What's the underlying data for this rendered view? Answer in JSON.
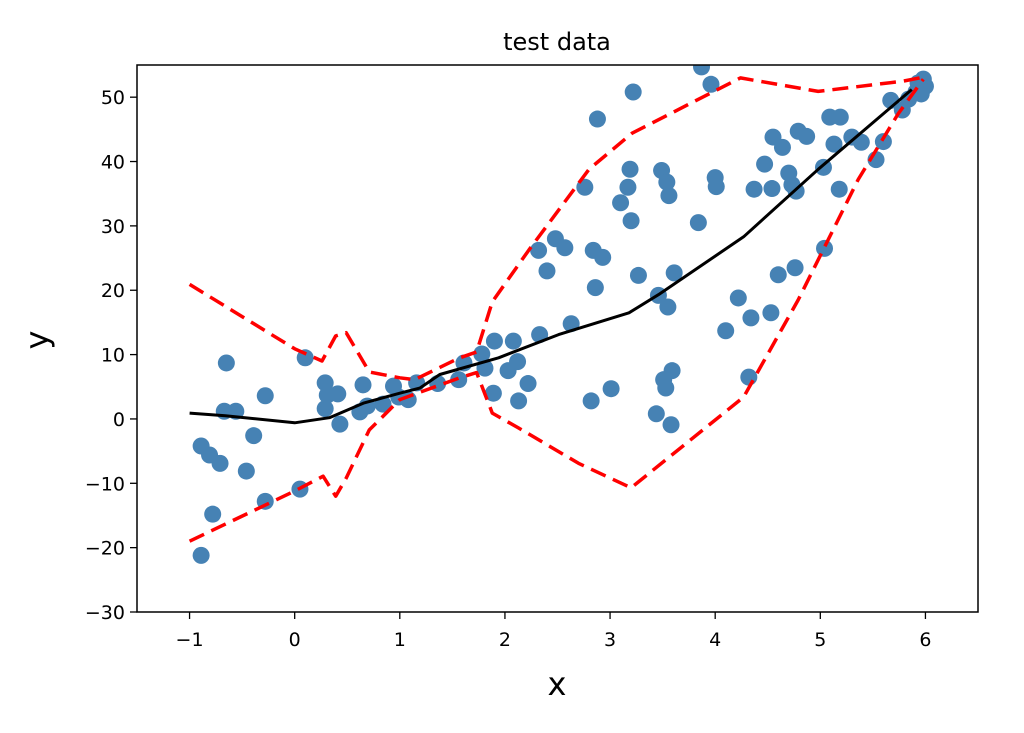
{
  "chart_data": {
    "type": "scatter",
    "title": "test data",
    "xlabel": "x",
    "ylabel": "y",
    "xlim": [
      -1.5,
      6.5
    ],
    "ylim": [
      -30,
      55
    ],
    "xticks": [
      -1,
      0,
      1,
      2,
      3,
      4,
      5,
      6
    ],
    "yticks": [
      -30,
      -20,
      -10,
      0,
      10,
      20,
      30,
      40,
      50
    ],
    "grid": false,
    "colors": {
      "points": "#4682b4",
      "fit": "#000000",
      "band": "#ff0000"
    },
    "series": [
      {
        "kind": "scatter",
        "points": [
          [
            -0.89,
            -21.2
          ],
          [
            -0.78,
            -14.8
          ],
          [
            -0.89,
            -4.2
          ],
          [
            -0.81,
            -5.6
          ],
          [
            -0.71,
            -6.9
          ],
          [
            -0.65,
            8.7
          ],
          [
            -0.67,
            1.2
          ],
          [
            -0.56,
            1.2
          ],
          [
            -0.46,
            -8.1
          ],
          [
            -0.39,
            -2.6
          ],
          [
            -0.28,
            -12.8
          ],
          [
            -0.28,
            3.6
          ],
          [
            0.05,
            -10.9
          ],
          [
            0.1,
            9.5
          ],
          [
            0.29,
            5.6
          ],
          [
            0.29,
            1.6
          ],
          [
            0.31,
            3.7
          ],
          [
            0.41,
            3.9
          ],
          [
            0.43,
            -0.8
          ],
          [
            0.65,
            5.3
          ],
          [
            0.62,
            1.1
          ],
          [
            0.69,
            2.0
          ],
          [
            0.84,
            2.3
          ],
          [
            0.94,
            5.1
          ],
          [
            0.99,
            3.4
          ],
          [
            1.08,
            3.0
          ],
          [
            1.16,
            5.6
          ],
          [
            1.36,
            5.5
          ],
          [
            1.56,
            6.1
          ],
          [
            1.61,
            8.7
          ],
          [
            1.78,
            10.1
          ],
          [
            1.81,
            7.9
          ],
          [
            1.9,
            12.1
          ],
          [
            1.89,
            4.0
          ],
          [
            2.03,
            7.5
          ],
          [
            2.08,
            12.1
          ],
          [
            2.12,
            8.9
          ],
          [
            2.13,
            2.8
          ],
          [
            2.22,
            5.5
          ],
          [
            2.33,
            13.1
          ],
          [
            2.32,
            26.2
          ],
          [
            2.4,
            23.0
          ],
          [
            2.48,
            28.0
          ],
          [
            2.57,
            26.6
          ],
          [
            2.63,
            14.8
          ],
          [
            2.76,
            36.0
          ],
          [
            2.82,
            2.8
          ],
          [
            2.84,
            26.2
          ],
          [
            2.86,
            20.4
          ],
          [
            2.93,
            25.1
          ],
          [
            2.88,
            46.6
          ],
          [
            3.01,
            4.7
          ],
          [
            3.1,
            33.6
          ],
          [
            3.17,
            36.0
          ],
          [
            3.19,
            38.8
          ],
          [
            3.2,
            30.8
          ],
          [
            3.22,
            50.8
          ],
          [
            3.27,
            22.3
          ],
          [
            3.44,
            0.8
          ],
          [
            3.46,
            19.2
          ],
          [
            3.49,
            38.6
          ],
          [
            3.51,
            6.1
          ],
          [
            3.53,
            4.8
          ],
          [
            3.54,
            36.8
          ],
          [
            3.56,
            34.7
          ],
          [
            3.55,
            17.4
          ],
          [
            3.58,
            -0.9
          ],
          [
            3.59,
            7.5
          ],
          [
            3.61,
            22.7
          ],
          [
            3.84,
            30.5
          ],
          [
            3.87,
            54.7
          ],
          [
            3.96,
            52.0
          ],
          [
            4.0,
            37.5
          ],
          [
            4.01,
            36.1
          ],
          [
            4.1,
            13.7
          ],
          [
            4.22,
            18.8
          ],
          [
            4.32,
            6.5
          ],
          [
            4.34,
            15.7
          ],
          [
            4.37,
            35.7
          ],
          [
            4.47,
            39.6
          ],
          [
            4.53,
            16.5
          ],
          [
            4.54,
            35.8
          ],
          [
            4.55,
            43.8
          ],
          [
            4.6,
            22.4
          ],
          [
            4.64,
            42.2
          ],
          [
            4.7,
            38.2
          ],
          [
            4.73,
            36.4
          ],
          [
            4.76,
            23.5
          ],
          [
            4.77,
            35.4
          ],
          [
            4.79,
            44.7
          ],
          [
            4.87,
            43.9
          ],
          [
            5.03,
            39.1
          ],
          [
            5.04,
            26.5
          ],
          [
            5.09,
            46.9
          ],
          [
            5.13,
            42.7
          ],
          [
            5.19,
            46.9
          ],
          [
            5.18,
            35.7
          ],
          [
            5.3,
            43.8
          ],
          [
            5.39,
            43.0
          ],
          [
            5.53,
            40.3
          ],
          [
            5.6,
            43.1
          ],
          [
            5.67,
            49.5
          ],
          [
            5.78,
            48.0
          ],
          [
            5.84,
            49.7
          ],
          [
            5.91,
            50.8
          ],
          [
            5.98,
            52.8
          ],
          [
            5.96,
            50.5
          ],
          [
            6.0,
            51.7
          ],
          [
            5.93,
            52.2
          ]
        ]
      },
      {
        "kind": "line",
        "points": [
          [
            -1,
            0.9
          ],
          [
            -0.66,
            0.5
          ],
          [
            0,
            -0.6
          ],
          [
            0.33,
            0.2
          ],
          [
            0.66,
            2.5
          ],
          [
            1,
            4.0
          ],
          [
            1.19,
            4.8
          ],
          [
            1.38,
            6.9
          ],
          [
            1.94,
            9.5
          ],
          [
            2.51,
            13.1
          ],
          [
            3.18,
            16.5
          ],
          [
            3.46,
            19.3
          ],
          [
            4.27,
            28.3
          ],
          [
            4.98,
            38.8
          ],
          [
            5.87,
            51.2
          ]
        ]
      },
      {
        "kind": "dashed-upper",
        "points": [
          [
            -1,
            20.9
          ],
          [
            0,
            10.9
          ],
          [
            0.26,
            9.0
          ],
          [
            0.39,
            12.9
          ],
          [
            0.49,
            13.4
          ],
          [
            0.71,
            7.3
          ],
          [
            1,
            6.4
          ],
          [
            1.14,
            6.1
          ],
          [
            1.57,
            9.5
          ],
          [
            1.73,
            10.4
          ],
          [
            1.88,
            18.2
          ],
          [
            2.23,
            26.3
          ],
          [
            2.8,
            38.8
          ],
          [
            3.21,
            44.4
          ],
          [
            4.24,
            53.0
          ],
          [
            4.98,
            50.9
          ],
          [
            5.79,
            52.5
          ],
          [
            5.98,
            53.1
          ]
        ]
      },
      {
        "kind": "dashed-lower",
        "points": [
          [
            -1,
            -19.0
          ],
          [
            0,
            -11.2
          ],
          [
            0.27,
            -8.9
          ],
          [
            0.39,
            -12.0
          ],
          [
            0.49,
            -9.2
          ],
          [
            0.71,
            -1.7
          ],
          [
            1,
            3.0
          ],
          [
            1.57,
            6.4
          ],
          [
            1.73,
            7.2
          ],
          [
            1.88,
            0.9
          ],
          [
            2.13,
            -1.4
          ],
          [
            2.7,
            -6.9
          ],
          [
            3.2,
            -10.7
          ],
          [
            4.27,
            3.4
          ],
          [
            4.79,
            18.5
          ],
          [
            5.36,
            37.2
          ],
          [
            5.74,
            47.4
          ],
          [
            5.98,
            52.8
          ]
        ]
      }
    ]
  }
}
